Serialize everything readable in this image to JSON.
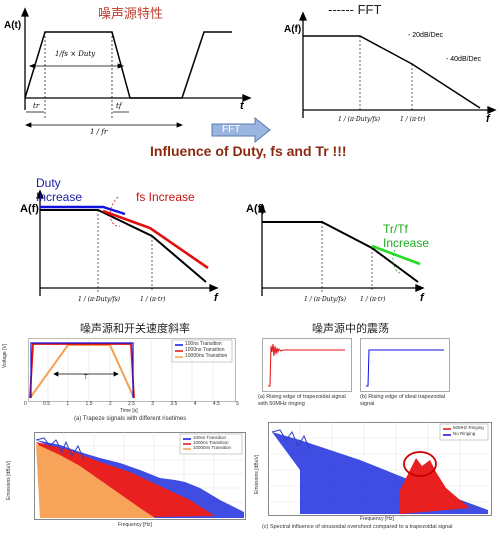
{
  "top": {
    "time_title": "噪声源特性",
    "fft_title": "------ FFT",
    "time_ylabel": "A(t)",
    "time_xlabel": "t",
    "duty_formula": "1/fs × Duty",
    "tr_label": "tr",
    "tf_label": "tf",
    "period_label": "1 / fr",
    "freq_ylabel": "A(f)",
    "freq_xlabel": "f",
    "slope1": "- 20dB/Dec",
    "slope2": "- 40dB/Dec",
    "corner1": "1 / (π·Duty/fs)",
    "corner2": "1 / (π·tr)",
    "arrow_label": "FFT"
  },
  "headline": "Influence of Duty, fs and Tr !!!",
  "middle": {
    "left": {
      "ylabel": "A(f)",
      "xlabel": "f",
      "duty_label_1": "Duty",
      "duty_label_2": "Increase",
      "fs_label": "fs Increase",
      "corner1": "1 / (π·Duty/fs)",
      "corner2": "1 / (π·tr)"
    },
    "right": {
      "ylabel": "A(f)",
      "xlabel": "f",
      "trtf_label_1": "Tr/Tf",
      "trtf_label_2": "Increase",
      "corner1": "1 / (π·Duty/fs)",
      "corner2": "1 / (π·tr)"
    }
  },
  "lower": {
    "left_title": "噪声源和开关速度斜率",
    "right_title": "噪声源中的震荡",
    "trapeze": {
      "ylabel": "Voltage [V]",
      "xlabel": "Time [s]",
      "legend": [
        "100ns Transition",
        "1000ns Transition",
        "10000ns Transition"
      ],
      "xticks": [
        "0",
        "0.5",
        "1",
        "1.5",
        "2",
        "2.5",
        "3",
        "3.5",
        "4",
        "4.5",
        "5"
      ],
      "caption": "(a) Trapeze signals with different risetimes",
      "t_label": "T"
    },
    "ringing": {
      "caption_a": "(a) Rising edge of trapezoidal signal with 50MHz ringing",
      "caption_b": "(b) Rising edge of ideal trapezoidal signal"
    },
    "spectrum_left": {
      "ylabel": "Emissions [dBuV]",
      "xlabel": "Frequency [Hz]",
      "legend": [
        "100ns Transition",
        "1000ns Transition",
        "10000ns Transition"
      ]
    },
    "spectrum_right": {
      "ylabel": "Emissions [dBuV]",
      "xlabel": "Frequency [Hz]",
      "legend": [
        "50MHz Ringing",
        "No Ringing"
      ],
      "caption": "(c) Spectral influence of sinusoidal overshoot compared to a trapezoidal signal"
    }
  },
  "colors": {
    "red": "#e01010",
    "blue": "#1010e0",
    "orange": "#f5a050",
    "green": "#22dd22",
    "headline": "#c0392b"
  }
}
